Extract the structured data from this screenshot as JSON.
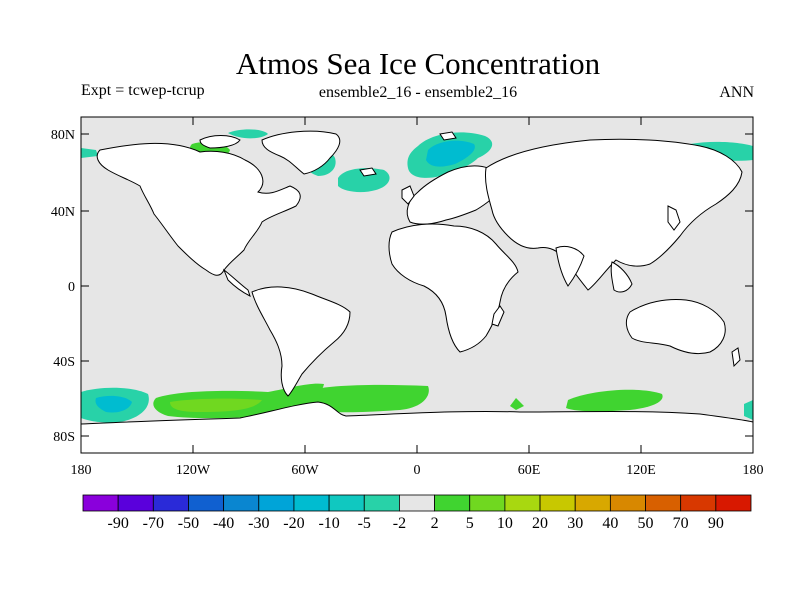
{
  "title": "Atmos Sea Ice Concentration",
  "subtitle_left": "Expt = tcwep-tcrup",
  "subtitle_center": "ensemble2_16 - ensemble2_16",
  "subtitle_right": "ANN",
  "lat_labels": [
    "80N",
    "40N",
    "0",
    "40S",
    "80S"
  ],
  "lon_labels": [
    "180",
    "120W",
    "60W",
    "0",
    "60E",
    "120E",
    "180"
  ],
  "colorbar": {
    "labels": [
      "-90",
      "-70",
      "-50",
      "-40",
      "-30",
      "-20",
      "-10",
      "-5",
      "-2",
      "2",
      "5",
      "10",
      "20",
      "30",
      "40",
      "50",
      "70",
      "90"
    ],
    "colors": [
      "#8a00dc",
      "#5a00dc",
      "#2a2ad8",
      "#1060d0",
      "#0a86d0",
      "#00a4d8",
      "#00bcd0",
      "#10c8c0",
      "#28d2a8",
      "#e6e6e6",
      "#40d430",
      "#70d820",
      "#a8d810",
      "#c8c800",
      "#d8a800",
      "#d88800",
      "#d86000",
      "#d83800",
      "#d81800"
    ]
  },
  "colors": {
    "ocean": "#e6e6e6",
    "land": "#ffffff",
    "coast": "#000000",
    "ice_decrease_light": "#28d2a8",
    "ice_decrease_mid": "#10c8c0",
    "ice_decrease_strong": "#00bcd0",
    "ice_increase_light": "#40d430",
    "ice_increase_mid": "#70d820",
    "ice_increase_strong": "#a8d810"
  }
}
